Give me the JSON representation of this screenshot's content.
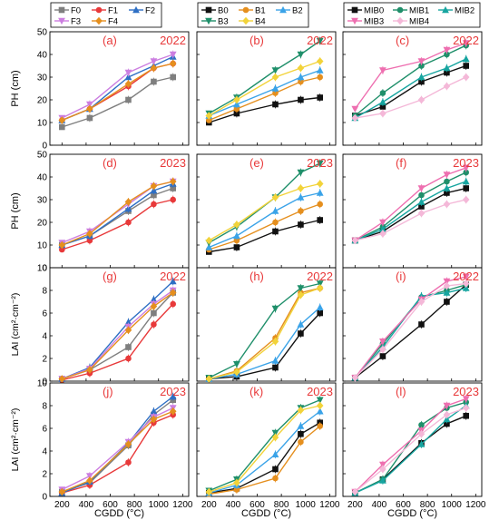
{
  "figure": {
    "xlabel": "CGDD (°C)",
    "ylabel_ph": "PH (cm)",
    "ylabel_lai": "LAI (cm²·cm⁻²)"
  },
  "legends": [
    {
      "column": "left",
      "entries": [
        {
          "name": "F0",
          "color": "#7f7f7f",
          "marker": "square"
        },
        {
          "name": "F1",
          "color": "#e8393a",
          "marker": "circle"
        },
        {
          "name": "F2",
          "color": "#2e6fc4",
          "marker": "triangle"
        },
        {
          "name": "F3",
          "color": "#cc7ee0",
          "marker": "triangle-down"
        },
        {
          "name": "F4",
          "color": "#e58f1e",
          "marker": "diamond"
        }
      ]
    },
    {
      "column": "middle",
      "entries": [
        {
          "name": "B0",
          "color": "#111111",
          "marker": "square"
        },
        {
          "name": "B1",
          "color": "#e58f1e",
          "marker": "circle"
        },
        {
          "name": "B2",
          "color": "#3aa3e8",
          "marker": "triangle"
        },
        {
          "name": "B3",
          "color": "#1f8f6a",
          "marker": "triangle-down"
        },
        {
          "name": "B4",
          "color": "#f2d33a",
          "marker": "diamond"
        }
      ]
    },
    {
      "column": "right",
      "entries": [
        {
          "name": "MIB0",
          "color": "#111111",
          "marker": "square"
        },
        {
          "name": "MIB1",
          "color": "#1f8f6a",
          "marker": "circle"
        },
        {
          "name": "MIB2",
          "color": "#17a5a0",
          "marker": "triangle"
        },
        {
          "name": "MIB3",
          "color": "#ee6fb0",
          "marker": "triangle-down"
        },
        {
          "name": "MIB4",
          "color": "#f4b8d8",
          "marker": "diamond"
        }
      ]
    }
  ],
  "chart_data": [
    {
      "panel": "(a)",
      "year": "2022",
      "type": "line",
      "x": [
        200,
        430,
        750,
        960,
        1120
      ],
      "ylim": [
        0,
        50
      ],
      "series": [
        {
          "name": "F0",
          "values": [
            8,
            12,
            20,
            28,
            30
          ]
        },
        {
          "name": "F1",
          "values": [
            11,
            16,
            26,
            34,
            36
          ]
        },
        {
          "name": "F2",
          "values": [
            11,
            16,
            30,
            35,
            39
          ]
        },
        {
          "name": "F3",
          "values": [
            12,
            18,
            32,
            37,
            40
          ]
        },
        {
          "name": "F4",
          "values": [
            11,
            16,
            27,
            34,
            36
          ]
        }
      ]
    },
    {
      "panel": "(b)",
      "year": "2022",
      "type": "line",
      "x": [
        200,
        430,
        750,
        960,
        1120
      ],
      "ylim": [
        0,
        50
      ],
      "series": [
        {
          "name": "B0",
          "values": [
            10,
            14,
            18,
            20,
            21
          ]
        },
        {
          "name": "B1",
          "values": [
            11,
            16,
            23,
            28,
            30
          ]
        },
        {
          "name": "B2",
          "values": [
            13,
            18,
            25,
            30,
            33
          ]
        },
        {
          "name": "B3",
          "values": [
            14,
            21,
            33,
            40,
            46
          ]
        },
        {
          "name": "B4",
          "values": [
            13,
            20,
            30,
            34,
            37
          ]
        }
      ]
    },
    {
      "panel": "(c)",
      "year": "2022",
      "type": "line",
      "x": [
        200,
        430,
        750,
        960,
        1120
      ],
      "ylim": [
        0,
        50
      ],
      "series": [
        {
          "name": "MIB0",
          "values": [
            13,
            17,
            28,
            32,
            35
          ]
        },
        {
          "name": "MIB1",
          "values": [
            13,
            23,
            35,
            40,
            44
          ]
        },
        {
          "name": "MIB2",
          "values": [
            12,
            19,
            30,
            34,
            38
          ]
        },
        {
          "name": "MIB3",
          "values": [
            16,
            33,
            37,
            42,
            45
          ]
        },
        {
          "name": "MIB4",
          "values": [
            12,
            14,
            20,
            26,
            30
          ]
        }
      ]
    },
    {
      "panel": "(d)",
      "year": "2023",
      "type": "line",
      "x": [
        200,
        430,
        750,
        960,
        1120
      ],
      "ylim": [
        0,
        50
      ],
      "series": [
        {
          "name": "F0",
          "values": [
            10,
            14,
            25,
            32,
            35
          ]
        },
        {
          "name": "F1",
          "values": [
            8,
            12,
            20,
            28,
            30
          ]
        },
        {
          "name": "F2",
          "values": [
            10,
            14,
            26,
            34,
            37
          ]
        },
        {
          "name": "F3",
          "values": [
            11,
            16,
            28,
            36,
            38
          ]
        },
        {
          "name": "F4",
          "values": [
            10,
            15,
            29,
            36,
            38
          ]
        }
      ]
    },
    {
      "panel": "(e)",
      "year": "2023",
      "type": "line",
      "x": [
        200,
        430,
        750,
        960,
        1120
      ],
      "ylim": [
        0,
        50
      ],
      "series": [
        {
          "name": "B0",
          "values": [
            7,
            9,
            16,
            19,
            21
          ]
        },
        {
          "name": "B1",
          "values": [
            8,
            12,
            20,
            25,
            28
          ]
        },
        {
          "name": "B2",
          "values": [
            9,
            14,
            25,
            31,
            33
          ]
        },
        {
          "name": "B3",
          "values": [
            11,
            18,
            31,
            42,
            46
          ]
        },
        {
          "name": "B4",
          "values": [
            12,
            19,
            31,
            35,
            37
          ]
        }
      ]
    },
    {
      "panel": "(f)",
      "year": "2023",
      "type": "line",
      "x": [
        200,
        430,
        750,
        960,
        1120
      ],
      "ylim": [
        0,
        50
      ],
      "series": [
        {
          "name": "MIB0",
          "values": [
            12,
            16,
            27,
            33,
            35
          ]
        },
        {
          "name": "MIB1",
          "values": [
            12,
            18,
            32,
            38,
            42
          ]
        },
        {
          "name": "MIB2",
          "values": [
            12,
            17,
            29,
            35,
            38
          ]
        },
        {
          "name": "MIB3",
          "values": [
            12,
            20,
            35,
            41,
            44
          ]
        },
        {
          "name": "MIB4",
          "values": [
            12,
            15,
            24,
            28,
            30
          ]
        }
      ]
    },
    {
      "panel": "(g)",
      "year": "2022",
      "type": "line",
      "x": [
        200,
        430,
        750,
        960,
        1120
      ],
      "ylim": [
        0,
        10
      ],
      "series": [
        {
          "name": "F0",
          "values": [
            0.2,
            1.0,
            3.0,
            6.0,
            7.8
          ]
        },
        {
          "name": "F1",
          "values": [
            0.1,
            0.7,
            2.0,
            5.0,
            6.8
          ]
        },
        {
          "name": "F2",
          "values": [
            0.2,
            1.2,
            5.2,
            7.2,
            8.8
          ]
        },
        {
          "name": "F3",
          "values": [
            0.2,
            1.1,
            4.8,
            6.8,
            8.0
          ]
        },
        {
          "name": "F4",
          "values": [
            0.2,
            1.0,
            4.5,
            6.6,
            7.8
          ]
        }
      ]
    },
    {
      "panel": "(h)",
      "year": "2022",
      "type": "line",
      "x": [
        200,
        430,
        750,
        960,
        1120
      ],
      "ylim": [
        0,
        10
      ],
      "series": [
        {
          "name": "B0",
          "values": [
            0.2,
            0.4,
            1.2,
            4.2,
            6.0
          ]
        },
        {
          "name": "B1",
          "values": [
            0.2,
            0.9,
            3.8,
            7.8,
            8.2
          ]
        },
        {
          "name": "B2",
          "values": [
            0.2,
            0.6,
            1.8,
            5.0,
            6.5
          ]
        },
        {
          "name": "B3",
          "values": [
            0.3,
            1.5,
            6.4,
            8.2,
            8.6
          ]
        },
        {
          "name": "B4",
          "values": [
            0.2,
            0.8,
            3.5,
            7.6,
            8.2
          ]
        }
      ]
    },
    {
      "panel": "(i)",
      "year": "2022",
      "type": "line",
      "x": [
        200,
        430,
        750,
        960,
        1120
      ],
      "ylim": [
        0,
        10
      ],
      "series": [
        {
          "name": "MIB0",
          "values": [
            0.3,
            2.2,
            5.0,
            7.0,
            8.5
          ]
        },
        {
          "name": "MIB1",
          "values": [
            0.3,
            3.3,
            7.4,
            8.0,
            8.5
          ]
        },
        {
          "name": "MIB2",
          "values": [
            0.3,
            3.0,
            7.5,
            7.8,
            8.2
          ]
        },
        {
          "name": "MIB3",
          "values": [
            0.3,
            3.5,
            7.2,
            8.8,
            9.2
          ]
        },
        {
          "name": "MIB4",
          "values": [
            0.3,
            2.8,
            7.0,
            8.4,
            8.6
          ]
        }
      ]
    },
    {
      "panel": "(j)",
      "year": "2023",
      "type": "line",
      "x": [
        200,
        430,
        750,
        960,
        1120
      ],
      "ylim": [
        0,
        10
      ],
      "series": [
        {
          "name": "F0",
          "values": [
            0.4,
            1.2,
            4.5,
            7.2,
            8.5
          ]
        },
        {
          "name": "F1",
          "values": [
            0.3,
            1.0,
            3.0,
            6.5,
            7.2
          ]
        },
        {
          "name": "F2",
          "values": [
            0.3,
            1.3,
            4.7,
            7.5,
            8.8
          ]
        },
        {
          "name": "F3",
          "values": [
            0.6,
            1.8,
            4.8,
            7.0,
            7.8
          ]
        },
        {
          "name": "F4",
          "values": [
            0.4,
            1.4,
            4.6,
            6.8,
            7.5
          ]
        }
      ]
    },
    {
      "panel": "(k)",
      "year": "2023",
      "type": "line",
      "x": [
        200,
        430,
        750,
        960,
        1120
      ],
      "ylim": [
        0,
        10
      ],
      "series": [
        {
          "name": "B0",
          "values": [
            0.3,
            0.7,
            2.4,
            5.5,
            6.5
          ]
        },
        {
          "name": "B1",
          "values": [
            0.2,
            0.6,
            1.6,
            4.8,
            6.2
          ]
        },
        {
          "name": "B2",
          "values": [
            0.3,
            1.0,
            3.7,
            6.2,
            7.5
          ]
        },
        {
          "name": "B3",
          "values": [
            0.5,
            1.5,
            5.6,
            7.8,
            8.5
          ]
        },
        {
          "name": "B4",
          "values": [
            0.4,
            1.2,
            5.2,
            7.6,
            8.0
          ]
        }
      ]
    },
    {
      "panel": "(l)",
      "year": "2023",
      "type": "line",
      "x": [
        200,
        430,
        750,
        960,
        1120
      ],
      "ylim": [
        0,
        10
      ],
      "series": [
        {
          "name": "MIB0",
          "values": [
            0.3,
            1.5,
            4.7,
            6.4,
            7.1
          ]
        },
        {
          "name": "MIB1",
          "values": [
            0.3,
            1.5,
            6.3,
            7.8,
            8.3
          ]
        },
        {
          "name": "MIB2",
          "values": [
            0.3,
            1.4,
            4.6,
            6.8,
            8.0
          ]
        },
        {
          "name": "MIB3",
          "values": [
            0.4,
            2.8,
            5.8,
            8.0,
            8.6
          ]
        },
        {
          "name": "MIB4",
          "values": [
            0.4,
            2.4,
            5.5,
            7.2,
            7.8
          ]
        }
      ]
    }
  ],
  "axes": {
    "x_ticks": [
      "200",
      "400",
      "600",
      "800",
      "1000",
      "1200"
    ],
    "x_min": 100,
    "x_max": 1250,
    "ph_ticks": [
      "0",
      "10",
      "20",
      "30",
      "40",
      "50"
    ],
    "lai_ticks": [
      "0",
      "2",
      "4",
      "6",
      "8",
      "10"
    ]
  }
}
